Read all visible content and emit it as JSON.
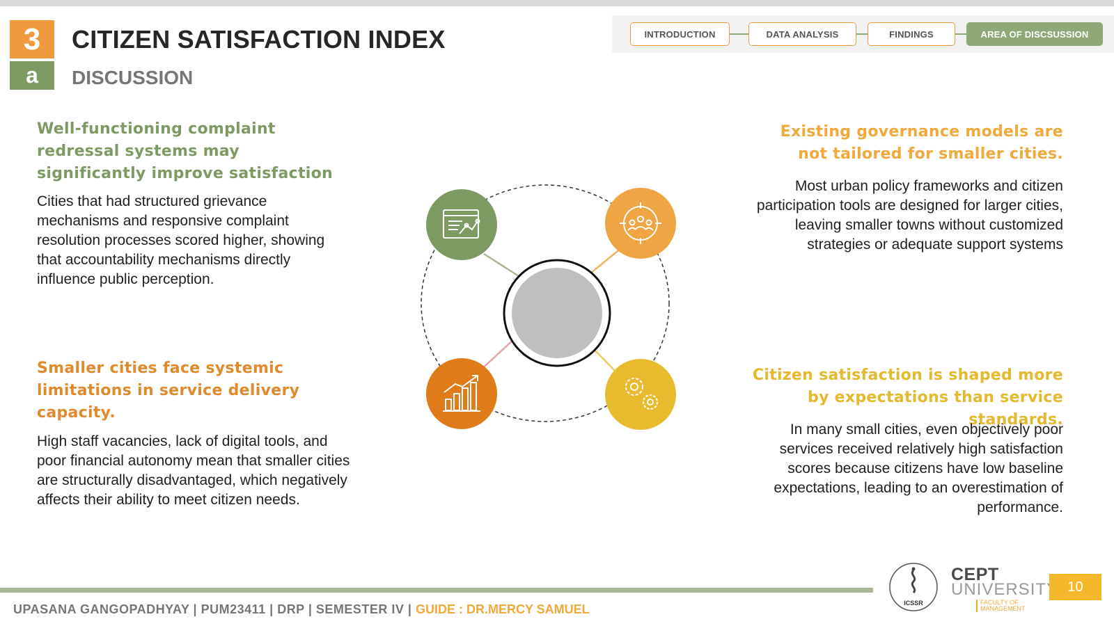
{
  "header": {
    "section_number": "3",
    "section_letter": "a",
    "title": "CITIZEN SATISFACTION INDEX",
    "subtitle": "DISCUSSION"
  },
  "nav": {
    "tabs": [
      {
        "label": "INTRODUCTION",
        "active": false
      },
      {
        "label": "DATA ANALYSIS",
        "active": false
      },
      {
        "label": "FINDINGS",
        "active": false
      },
      {
        "label": "AREA OF DISCSUSSION",
        "active": true
      }
    ]
  },
  "points": {
    "top_left": {
      "heading": "Well-functioning complaint redressal systems may significantly improve satisfaction",
      "text": "Cities that had structured grievance mechanisms and responsive complaint resolution processes scored higher, showing that accountability mechanisms directly influence public perception."
    },
    "bottom_left": {
      "heading": "Smaller cities face systemic limitations in service delivery capacity.",
      "text": "High staff vacancies, lack of digital tools, and poor financial autonomy mean that smaller cities are structurally disadvantaged, which negatively affects their ability to meet citizen needs."
    },
    "top_right": {
      "heading": "Existing governance models are not tailored for smaller cities.",
      "text": "Most urban policy frameworks and citizen participation tools are designed for larger cities, leaving smaller towns without customized strategies or adequate support systems"
    },
    "bottom_right": {
      "heading": "Citizen satisfaction is shaped more by expectations than service standards.",
      "text": "In many small cities, even objectively poor services received relatively high satisfaction scores because citizens have low baseline expectations, leading to an overestimation of performance."
    }
  },
  "diagram": {
    "nodes": [
      {
        "icon": "report-chart-icon",
        "color": "#7d9a63"
      },
      {
        "icon": "people-target-icon",
        "color": "#f0a544"
      },
      {
        "icon": "growth-bar-chart-icon",
        "color": "#e07b1a"
      },
      {
        "icon": "gears-icon",
        "color": "#e8bb2e"
      }
    ],
    "center_color": "#bfbfbf"
  },
  "footer": {
    "author_line": "UPASANA GANGOPADHYAY | PUM23411 | DRP | SEMESTER IV | ",
    "guide": "GUIDE : DR.MERCY SAMUEL",
    "page_number": "10"
  },
  "logos": {
    "icssr": "ICSSR",
    "cept_line1": "CEPT",
    "cept_line2": "UNIVERSITY",
    "cept_line3": "FACULTY OF MANAGEMENT"
  }
}
